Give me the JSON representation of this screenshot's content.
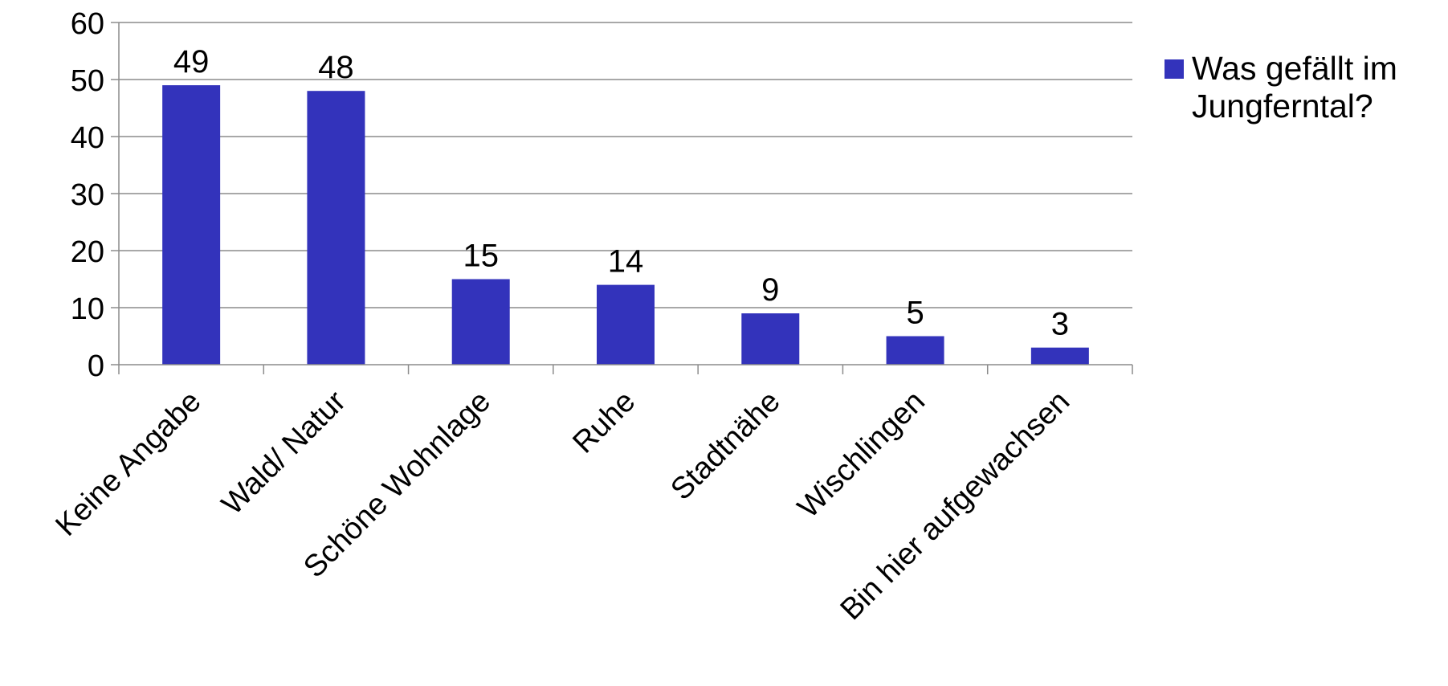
{
  "chart_data": {
    "type": "bar",
    "categories": [
      "Keine Angabe",
      "Wald/ Natur",
      "Schöne Wohnlage",
      "Ruhe",
      "Stadtnähe",
      "Wischlingen",
      "Bin hier aufgewachsen"
    ],
    "series": [
      {
        "name": "Was gefällt im Jungferntal?",
        "values": [
          49,
          48,
          15,
          14,
          9,
          5,
          3
        ],
        "color": "#3333bb"
      }
    ],
    "ylim": [
      0,
      60
    ],
    "yticks": [
      0,
      10,
      20,
      30,
      40,
      50,
      60
    ],
    "grid": true,
    "legend": "right",
    "data_labels": true
  }
}
